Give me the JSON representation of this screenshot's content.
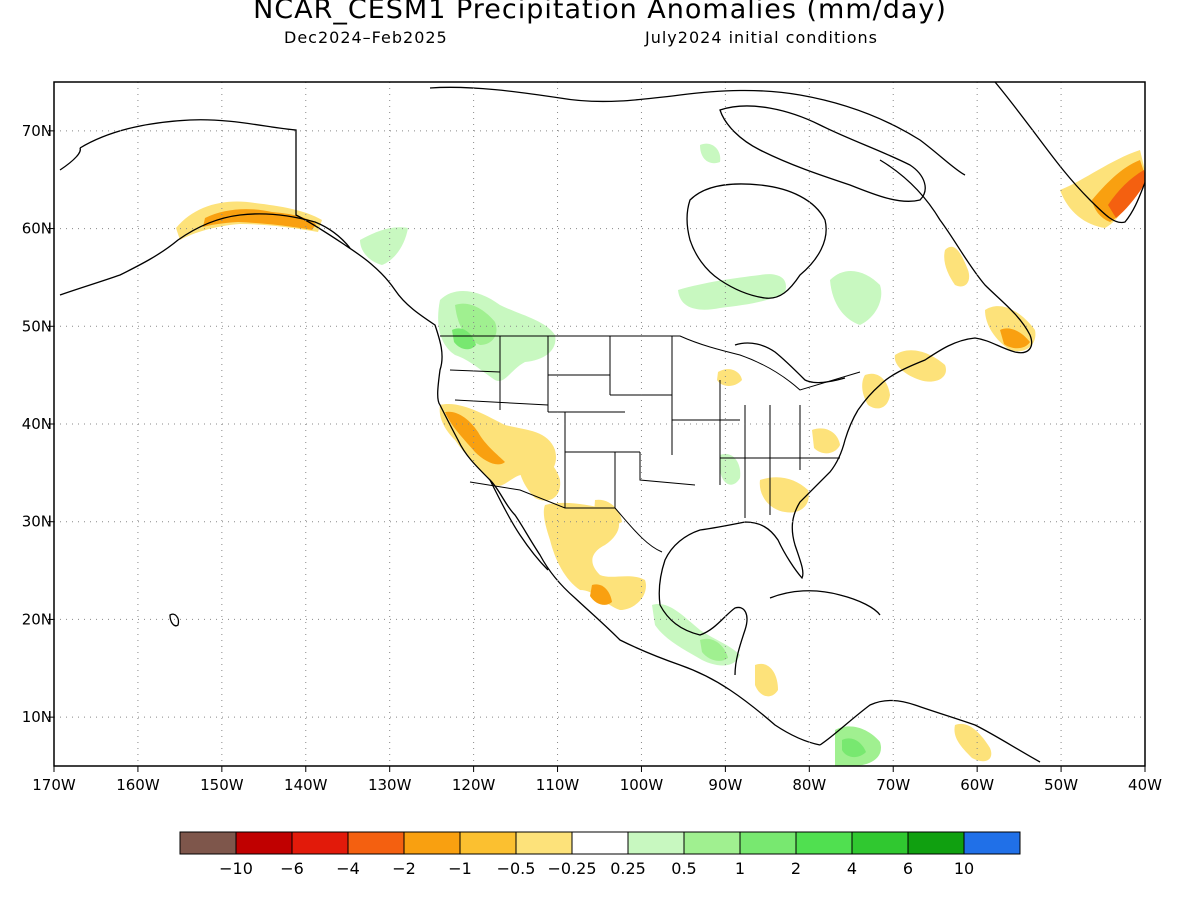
{
  "title": "NCAR_CESM1 Precipitation Anomalies (mm/day)",
  "subtitle_left": "Dec2024–Feb2025",
  "subtitle_right": "July2024 initial conditions",
  "map": {
    "lon_range": [
      -170,
      -40
    ],
    "lat_range": [
      5,
      75
    ],
    "x_ticks": [
      "170W",
      "160W",
      "150W",
      "140W",
      "130W",
      "120W",
      "110W",
      "100W",
      "90W",
      "80W",
      "70W",
      "60W",
      "50W",
      "40W"
    ],
    "y_ticks": [
      "10N",
      "20N",
      "30N",
      "40N",
      "50N",
      "60N",
      "70N"
    ],
    "grid": "dotted"
  },
  "colorbar": {
    "colors": [
      "#7e564b",
      "#c00000",
      "#e21a0a",
      "#f46010",
      "#f9a010",
      "#fbc030",
      "#fde27a",
      "#ffffff",
      "#c8f8c0",
      "#a0f090",
      "#78e870",
      "#50e050",
      "#30c830",
      "#10a010",
      "#2070e8"
    ],
    "labels": [
      "−10",
      "−6",
      "−4",
      "−2",
      "−1",
      "−0.5",
      "−0.25",
      "0.25",
      "0.5",
      "1",
      "2",
      "4",
      "6",
      "10"
    ]
  },
  "legend_regions": {
    "dry_color": "#fde27a",
    "dry_moderate_color": "#f9a010",
    "dry_strong_color": "#f46010",
    "wet_color": "#c8f8c0",
    "wet_moderate_color": "#a0f090",
    "wet_strong_color": "#78e870"
  }
}
